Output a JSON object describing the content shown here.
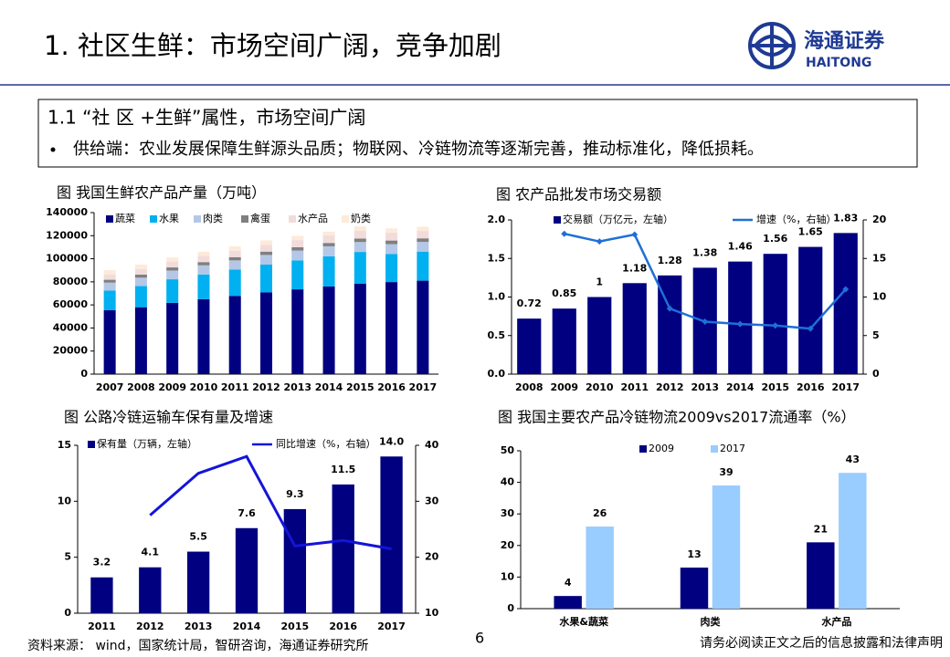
{
  "header": {
    "title": "1. 社区生鲜：市场空间广阔，竞争加剧",
    "logo_cn": "海通证券",
    "logo_en": "HAITONG"
  },
  "section": {
    "title": "1.1 “社 区 +生鲜”属性，市场空间广阔",
    "bullet": "供给端：农业发展保障生鲜源头品质；物联网、冷链物流等逐渐完善，推动标准化，降低损耗。"
  },
  "footer": {
    "source": "资料来源： wind，国家统计局，智研咨询，海通证券研究所",
    "page": "6",
    "disclaimer": "请务必阅读正文之后的信息披露和法律声明"
  },
  "chart_data": [
    {
      "type": "bar",
      "stacked": true,
      "title": "图 我国生鲜农产品产量（万吨）",
      "categories": [
        "2007",
        "2008",
        "2009",
        "2010",
        "2011",
        "2012",
        "2013",
        "2014",
        "2015",
        "2016",
        "2017"
      ],
      "series": [
        {
          "name": "蔬菜",
          "color": "#000080",
          "values": [
            55400,
            58000,
            61800,
            65000,
            67800,
            70900,
            73500,
            76000,
            78500,
            79800,
            81000
          ]
        },
        {
          "name": "水果",
          "color": "#00b0f0",
          "values": [
            17000,
            18300,
            20400,
            21400,
            22800,
            24000,
            25100,
            26100,
            27400,
            24400,
            25200
          ]
        },
        {
          "name": "肉类",
          "color": "#b4c7e7",
          "values": [
            6900,
            7300,
            7600,
            7900,
            8000,
            8400,
            8500,
            8700,
            8600,
            8500,
            8400
          ]
        },
        {
          "name": "禽蛋",
          "color": "#7f7f7f",
          "values": [
            2500,
            2700,
            2700,
            2800,
            2800,
            2900,
            2900,
            2900,
            3000,
            3100,
            3100
          ]
        },
        {
          "name": "水产品",
          "color": "#f2dcdb",
          "values": [
            4700,
            4900,
            5100,
            5400,
            5600,
            5900,
            6200,
            6500,
            6700,
            6900,
            6400
          ]
        },
        {
          "name": "奶类",
          "color": "#fdeada",
          "values": [
            3600,
            3800,
            3500,
            3600,
            3800,
            3800,
            3600,
            3300,
            3800,
            3600,
            3700
          ]
        }
      ],
      "ylim": [
        0,
        140000
      ],
      "yticks": [
        0,
        20000,
        40000,
        60000,
        80000,
        100000,
        120000,
        140000
      ]
    },
    {
      "type": "combo",
      "title": "图  农产品批发市场交易额",
      "categories": [
        "2008",
        "2009",
        "2010",
        "2011",
        "2012",
        "2013",
        "2014",
        "2015",
        "2016",
        "2017"
      ],
      "series": [
        {
          "name": "交易额（万亿元，左轴）",
          "type": "bar",
          "color": "#000080",
          "values": [
            0.72,
            0.85,
            1.0,
            1.18,
            1.28,
            1.38,
            1.46,
            1.56,
            1.65,
            1.83
          ]
        },
        {
          "name": "增速（%，右轴）",
          "type": "line",
          "axis": "y2",
          "color": "#1f6fd6",
          "values": [
            null,
            18.2,
            17.2,
            18.1,
            8.5,
            6.8,
            6.5,
            6.3,
            5.9,
            11.0
          ]
        }
      ],
      "ylim": [
        0,
        2.0
      ],
      "yticks": [
        {
          "value": 0,
          "label": "0.0"
        },
        0.5,
        {
          "value": 1,
          "label": "1.0"
        },
        1.5,
        {
          "value": 2,
          "label": "2.0"
        }
      ],
      "y2lim": [
        0,
        20
      ],
      "y2ticks": [
        0,
        5,
        10,
        15,
        20
      ]
    },
    {
      "type": "combo",
      "title": "图   公路冷链运输车保有量及增速",
      "categories": [
        "2011",
        "2012",
        "2013",
        "2014",
        "2015",
        "2016",
        "2017"
      ],
      "series": [
        {
          "name": "保有量（万辆，左轴）",
          "type": "bar",
          "color": "#000080",
          "values": [
            3.2,
            4.1,
            5.5,
            7.6,
            9.3,
            11.5,
            14.0
          ],
          "value_labels": [
            "3.2",
            "4.1",
            "5.5",
            "7.6",
            "9.3",
            "11.5",
            "14.0"
          ]
        },
        {
          "name": "同比增速（%，右轴）",
          "type": "line",
          "axis": "y2",
          "color": "#1414d8",
          "values": [
            null,
            27.5,
            35,
            38,
            22,
            23,
            21.5
          ]
        }
      ],
      "ylim": [
        0,
        15
      ],
      "yticks": [
        0,
        5,
        10,
        15
      ],
      "y2lim": [
        10,
        40
      ],
      "y2ticks": [
        10,
        20,
        30,
        40
      ]
    },
    {
      "type": "bar",
      "title": "图   我国主要农产品冷链物流2009vs2017流通率（%）",
      "categories": [
        "水果&蔬菜",
        "肉类",
        "水产品"
      ],
      "series": [
        {
          "name": "2009",
          "color": "#000080",
          "values": [
            4,
            13,
            21
          ]
        },
        {
          "name": "2017",
          "color": "#99ccff",
          "values": [
            26,
            39,
            43
          ]
        }
      ],
      "ylim": [
        0,
        50
      ],
      "yticks": [
        0,
        10,
        20,
        30,
        40,
        50
      ]
    }
  ]
}
